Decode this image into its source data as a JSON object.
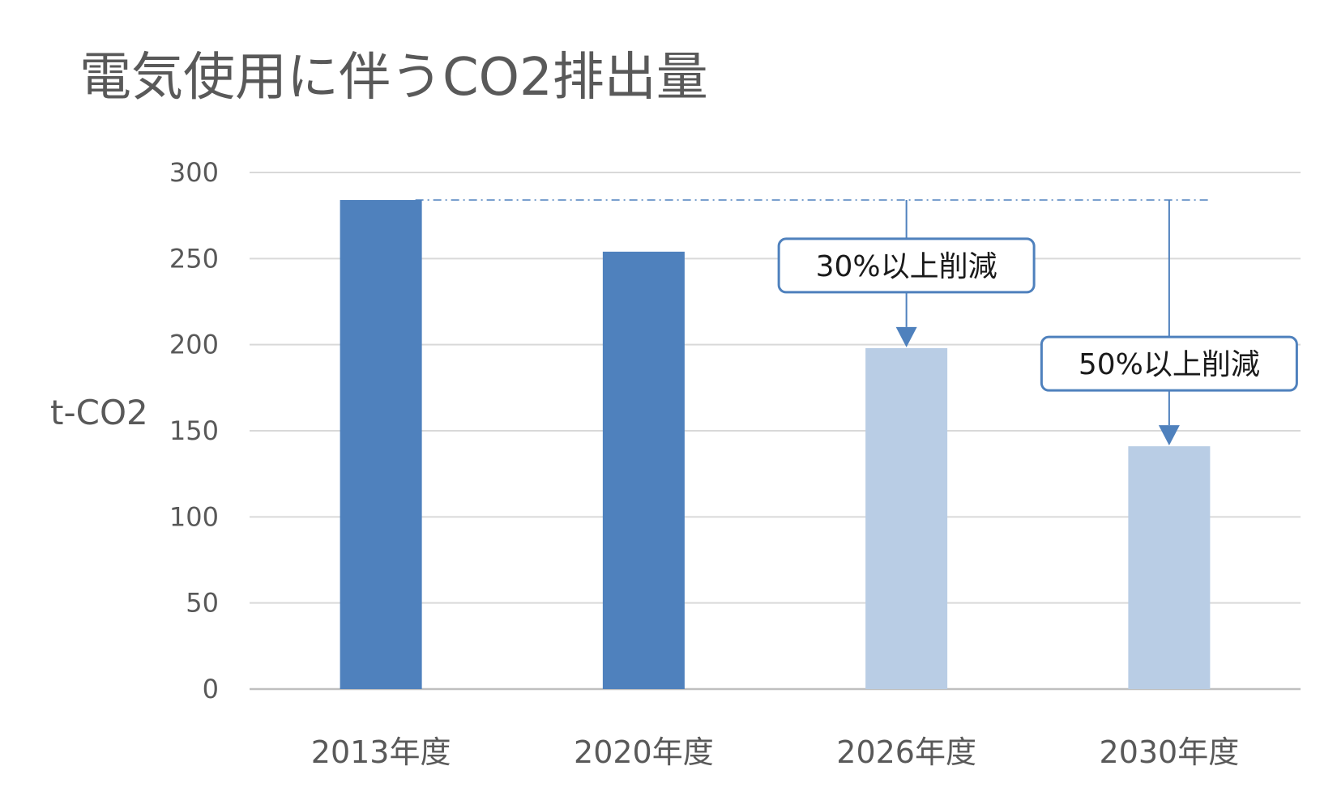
{
  "chart_data": {
    "type": "bar",
    "title": "電気使用に伴うCO2排出量",
    "ylabel": "t-CO2",
    "xlabel": "",
    "ylim": [
      0,
      300
    ],
    "yticks": [
      0,
      50,
      100,
      150,
      200,
      250,
      300
    ],
    "grid": true,
    "categories": [
      "2013年度",
      "2020年度",
      "2026年度",
      "2030年度"
    ],
    "values": [
      284,
      254,
      198,
      141
    ],
    "bar_colors": [
      "#4f81bd",
      "#4f81bd",
      "#b9cde5",
      "#b9cde5"
    ],
    "reference_line": {
      "value": 284,
      "style": "dash-dot",
      "color": "#4f81bd"
    },
    "annotations": [
      {
        "text": "30%以上削減",
        "category": "2026年度",
        "from": 284,
        "to": 198
      },
      {
        "text": "50%以上削減",
        "category": "2030年度",
        "from": 284,
        "to": 141
      }
    ]
  }
}
